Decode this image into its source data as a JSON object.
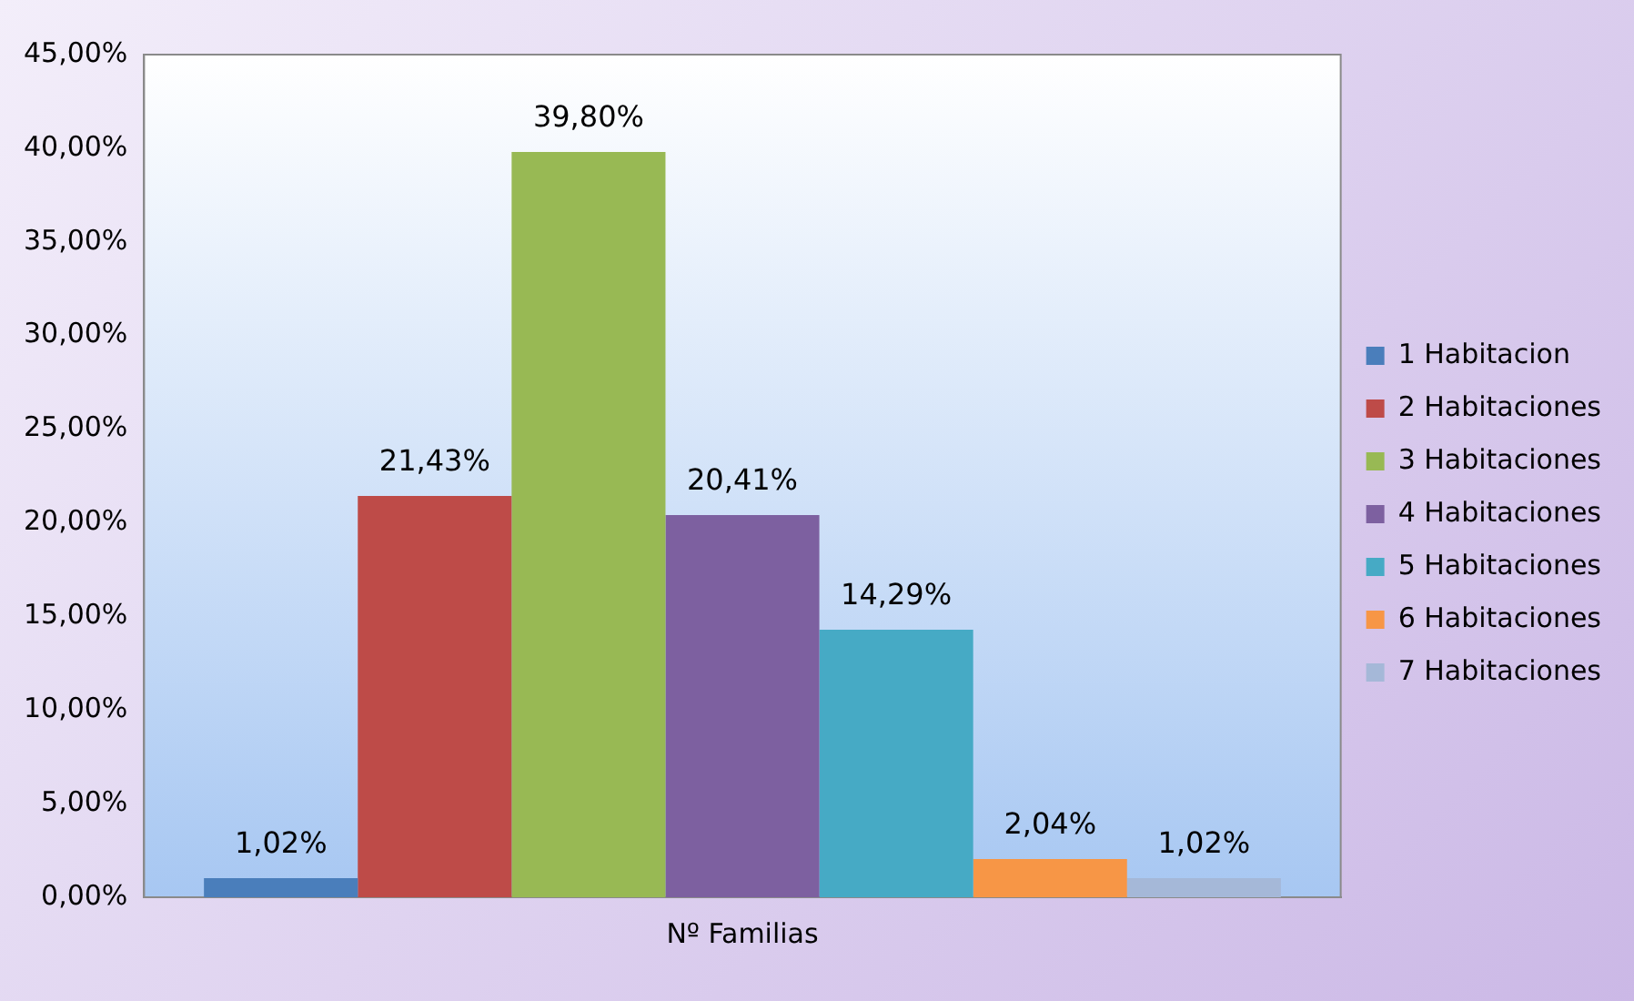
{
  "chart_data": {
    "type": "bar",
    "categories": [
      "Nº Familias"
    ],
    "series": [
      {
        "name": "1 Habitacion",
        "color": "#4a7ebb",
        "values": [
          1.02
        ],
        "value_labels": [
          "1,02%"
        ]
      },
      {
        "name": "2 Habitaciones",
        "color": "#be4b48",
        "values": [
          21.43
        ],
        "value_labels": [
          "21,43%"
        ]
      },
      {
        "name": "3 Habitaciones",
        "color": "#98b954",
        "values": [
          39.8
        ],
        "value_labels": [
          "39,80%"
        ]
      },
      {
        "name": "4 Habitaciones",
        "color": "#7d60a0",
        "values": [
          20.41
        ],
        "value_labels": [
          "20,41%"
        ]
      },
      {
        "name": "5 Habitaciones",
        "color": "#46aac5",
        "values": [
          14.29
        ],
        "value_labels": [
          "14,29%"
        ]
      },
      {
        "name": "6 Habitaciones",
        "color": "#f79646",
        "values": [
          2.04
        ],
        "value_labels": [
          "2,04%"
        ]
      },
      {
        "name": "7 Habitaciones",
        "color": "#a5b8d8",
        "values": [
          1.02
        ],
        "value_labels": [
          "1,02%"
        ]
      }
    ],
    "ylim": [
      0,
      45
    ],
    "yticks": [
      {
        "value": 0,
        "label": "0,00%"
      },
      {
        "value": 5,
        "label": "5,00%"
      },
      {
        "value": 10,
        "label": "10,00%"
      },
      {
        "value": 15,
        "label": "15,00%"
      },
      {
        "value": 20,
        "label": "20,00%"
      },
      {
        "value": 25,
        "label": "25,00%"
      },
      {
        "value": 30,
        "label": "30,00%"
      },
      {
        "value": 35,
        "label": "35,00%"
      },
      {
        "value": 40,
        "label": "40,00%"
      },
      {
        "value": 45,
        "label": "45,00%"
      }
    ],
    "legend": "right"
  }
}
